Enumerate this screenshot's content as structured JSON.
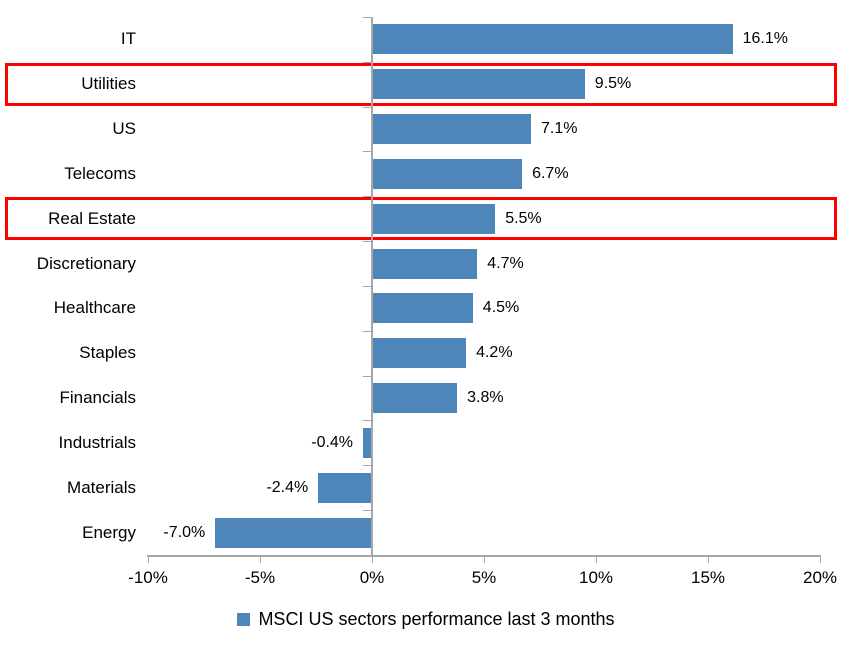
{
  "chart_data": {
    "type": "bar",
    "orientation": "horizontal",
    "title": "",
    "xlabel": "",
    "ylabel": "",
    "categories": [
      "IT",
      "Utilities",
      "US",
      "Telecoms",
      "Real Estate",
      "Discretionary",
      "Healthcare",
      "Staples",
      "Financials",
      "Industrials",
      "Materials",
      "Energy"
    ],
    "values": [
      16.1,
      9.5,
      7.1,
      6.7,
      5.5,
      4.7,
      4.5,
      4.2,
      3.8,
      -0.4,
      -2.4,
      -7.0
    ],
    "data_labels": [
      "16.1%",
      "9.5%",
      "7.1%",
      "6.7%",
      "5.5%",
      "4.7%",
      "4.5%",
      "4.2%",
      "3.8%",
      "-0.4%",
      "-2.4%",
      "-7.0%"
    ],
    "highlighted_categories": [
      "Utilities",
      "Real Estate"
    ],
    "x_tick_labels": [
      "-10%",
      "-5%",
      "0%",
      "5%",
      "10%",
      "15%",
      "20%"
    ],
    "x_tick_values": [
      -10,
      -5,
      0,
      5,
      10,
      15,
      20
    ],
    "xlim": [
      -10,
      20
    ],
    "grid": false,
    "legend_position": "bottom-center",
    "legend": {
      "label": "MSCI US sectors performance last 3 months",
      "marker": "square-icon"
    },
    "colors": {
      "bar": "#4E86BC",
      "highlight_box": "#FF0000",
      "axis": "#A6A6A6",
      "text": "#000000",
      "background": "#FFFFFF"
    }
  }
}
